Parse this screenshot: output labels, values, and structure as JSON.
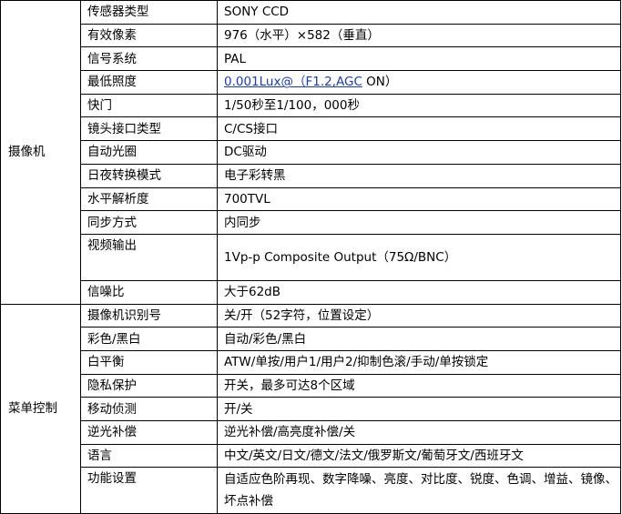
{
  "sections": [
    {
      "title": "摄像机",
      "rows": [
        {
          "label": "传感器类型",
          "value": "SONY CCD"
        },
        {
          "label": "有效像素",
          "value": "976（水平）×582（垂直）"
        },
        {
          "label": "信号系统",
          "value": "PAL"
        },
        {
          "label": "最低照度",
          "value_link": "0.001Lux@（F1.2,AGC",
          "value": " ON）"
        },
        {
          "label": "快门",
          "value": "1/50秒至1/100，000秒"
        },
        {
          "label": "镜头接口类型",
          "value": "C/CS接口"
        },
        {
          "label": "自动光圈",
          "value": "DC驱动"
        },
        {
          "label": "日夜转换模式",
          "value": "电子彩转黑"
        },
        {
          "label": "水平解析度",
          "value": "700TVL"
        },
        {
          "label": "同步方式",
          "value": "内同步"
        },
        {
          "label": "视频输出",
          "value": "1Vp-p Composite Output（75Ω/BNC）"
        },
        {
          "label": "信噪比",
          "value": "大于62dB"
        }
      ]
    },
    {
      "title": "菜单控制",
      "rows": [
        {
          "label": "摄像机识别号",
          "value": "关/开（52字符，位置设定）"
        },
        {
          "label": "彩色/黑白",
          "value": "自动/彩色/黑白"
        },
        {
          "label": "白平衡",
          "value": "ATW/单按/用户1/用户2/抑制色滚/手动/单按锁定"
        },
        {
          "label": "隐私保护",
          "value": "开关，最多可达8个区域"
        },
        {
          "label": "移动侦测",
          "value": "开/关"
        },
        {
          "label": "逆光补偿",
          "value": "逆光补偿/高亮度补偿/关"
        },
        {
          "label": "语言",
          "value": "中文/英文/日文/德文/法文/俄罗斯文/葡萄牙文/西班牙文"
        },
        {
          "label": "功能设置",
          "value": "自适应色阶再现、数字降噪、亮度、对比度、锐度、色调、增益、镜像、坏点补偿"
        }
      ]
    }
  ]
}
